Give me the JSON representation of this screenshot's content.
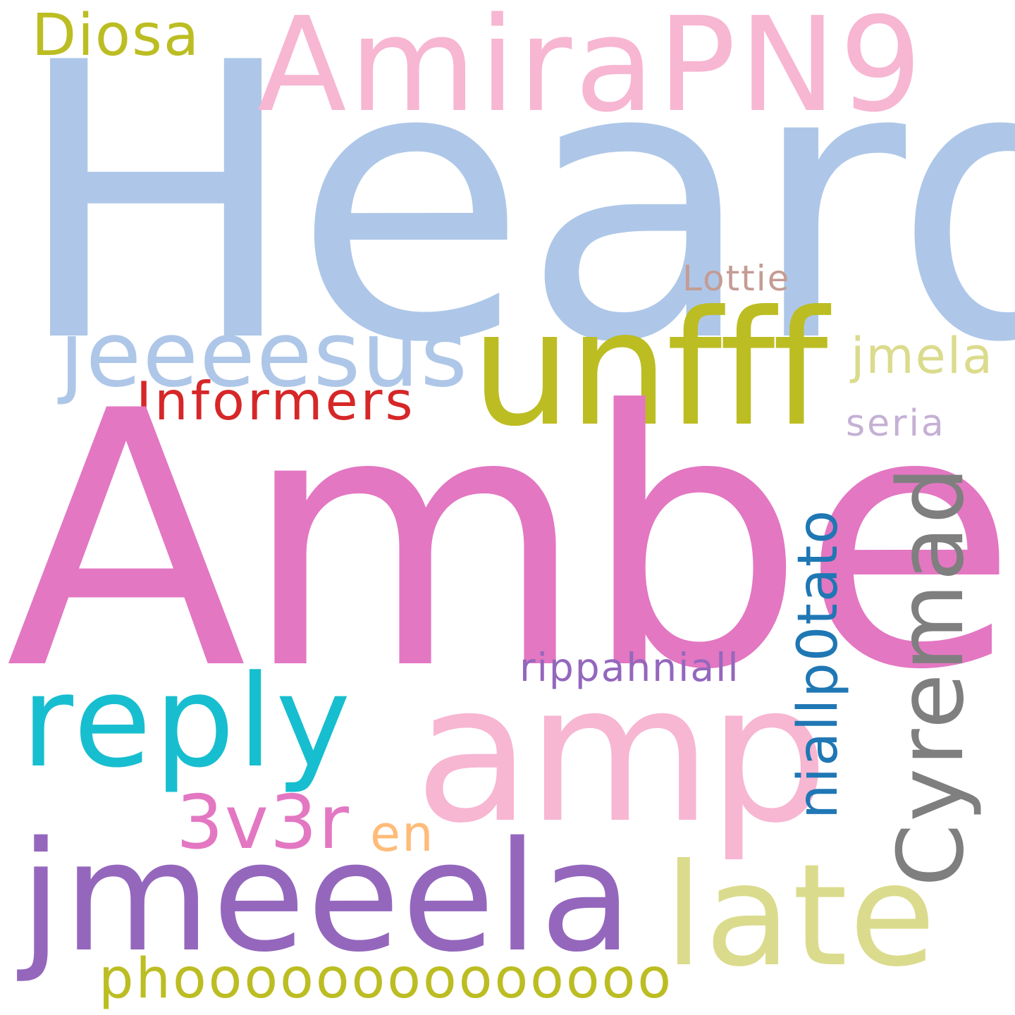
{
  "words": {
    "heard": {
      "text": "Heard",
      "color": "#aec7e8"
    },
    "amber": {
      "text": "Amber",
      "color": "#e377c2"
    },
    "amirapn9": {
      "text": "AmiraPN9",
      "color": "#f7b6d2"
    },
    "diosa": {
      "text": "Diosa",
      "color": "#bcbd22"
    },
    "lottie": {
      "text": "Lottie",
      "color": "#c49c94"
    },
    "jeeeesus": {
      "text": "jeeeesus",
      "color": "#aec7e8"
    },
    "unfff": {
      "text": "unfff",
      "color": "#bcbd22"
    },
    "jmela": {
      "text": "jmela",
      "color": "#dbdb8d"
    },
    "informers": {
      "text": "Informers",
      "color": "#d62728"
    },
    "seria": {
      "text": "seria",
      "color": "#c5b0d5"
    },
    "rippahniall": {
      "text": "rippahniall",
      "color": "#9467bd"
    },
    "reply": {
      "text": "reply",
      "color": "#17becf"
    },
    "amp": {
      "text": "amp",
      "color": "#f7b6d2"
    },
    "v3r": {
      "text": "3v3r",
      "color": "#e377c2"
    },
    "en": {
      "text": "en",
      "color": "#ffbb78"
    },
    "jmeeela": {
      "text": "jmeeela",
      "color": "#9467bd"
    },
    "late": {
      "text": "late",
      "color": "#dbdb8d"
    },
    "phooo": {
      "text": "phoooooooooooooo",
      "color": "#bcbd22"
    },
    "niall": {
      "text": "niallp0tato",
      "color": "#1f77b4"
    },
    "cyremad": {
      "text": "Cyremad",
      "color": "#7f7f7f"
    }
  }
}
